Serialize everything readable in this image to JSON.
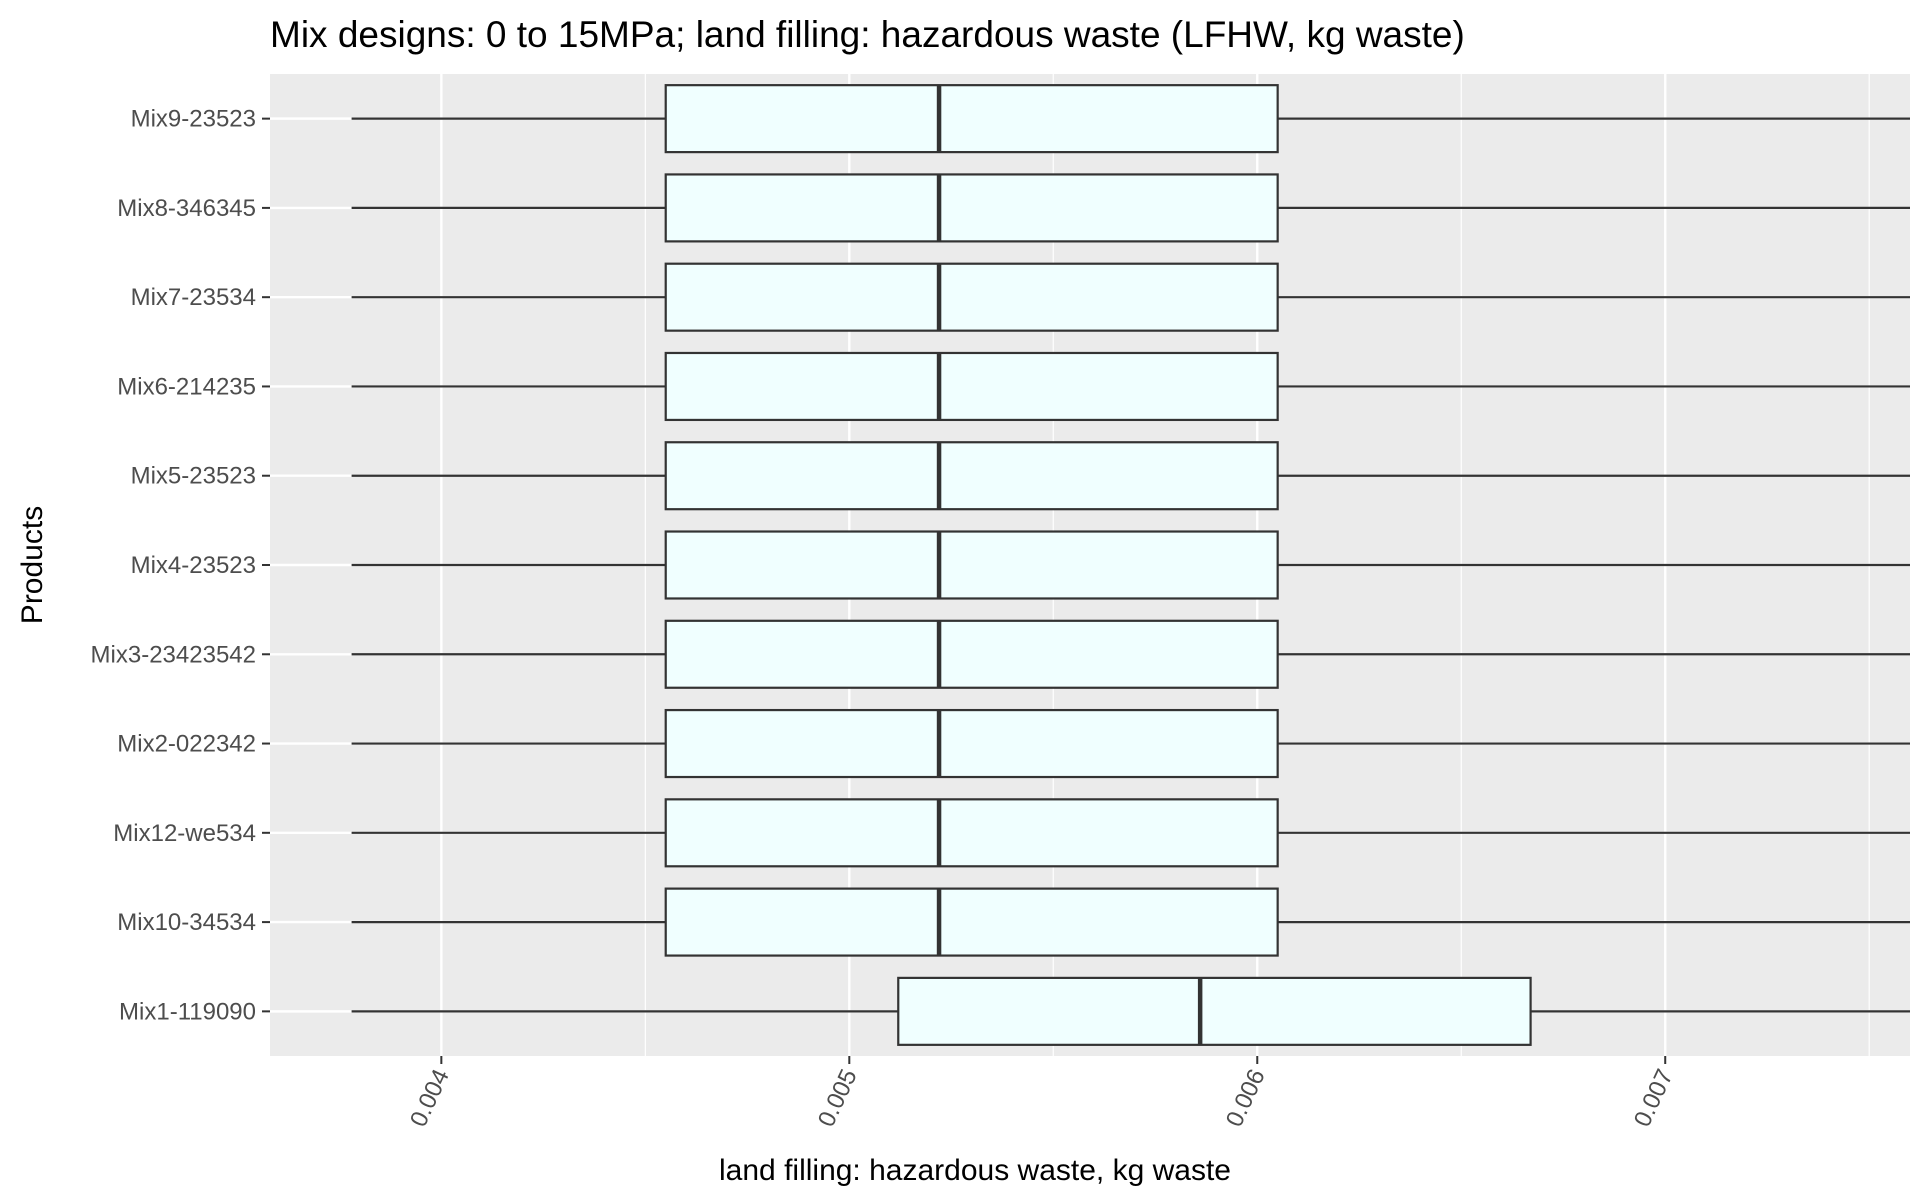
{
  "chart_data": {
    "type": "boxplot",
    "orientation": "horizontal",
    "title": "Mix designs: 0 to 15MPa; land filling: hazardous waste (LFHW, kg waste)",
    "xlabel": "land filling: hazardous waste, kg waste",
    "ylabel": "Products",
    "xlim": [
      0.00358,
      0.0076
    ],
    "x_ticks": [
      0.004,
      0.005,
      0.006,
      0.007
    ],
    "x_tick_labels": [
      "0.004",
      "0.005",
      "0.006",
      "0.007"
    ],
    "grid": true,
    "categories": [
      "Mix9-23523",
      "Mix8-346345",
      "Mix7-23534",
      "Mix6-214235",
      "Mix5-23523",
      "Mix4-23523",
      "Mix3-23423542",
      "Mix2-022342",
      "Mix12-we534",
      "Mix10-34534",
      "Mix1-119090"
    ],
    "boxes": [
      {
        "min": 0.00378,
        "q1": 0.00455,
        "median": 0.00522,
        "q3": 0.00605,
        "max": 0.0076
      },
      {
        "min": 0.00378,
        "q1": 0.00455,
        "median": 0.00522,
        "q3": 0.00605,
        "max": 0.0076
      },
      {
        "min": 0.00378,
        "q1": 0.00455,
        "median": 0.00522,
        "q3": 0.00605,
        "max": 0.0076
      },
      {
        "min": 0.00378,
        "q1": 0.00455,
        "median": 0.00522,
        "q3": 0.00605,
        "max": 0.0076
      },
      {
        "min": 0.00378,
        "q1": 0.00455,
        "median": 0.00522,
        "q3": 0.00605,
        "max": 0.0076
      },
      {
        "min": 0.00378,
        "q1": 0.00455,
        "median": 0.00522,
        "q3": 0.00605,
        "max": 0.0076
      },
      {
        "min": 0.00378,
        "q1": 0.00455,
        "median": 0.00522,
        "q3": 0.00605,
        "max": 0.0076
      },
      {
        "min": 0.00378,
        "q1": 0.00455,
        "median": 0.00522,
        "q3": 0.00605,
        "max": 0.0076
      },
      {
        "min": 0.00378,
        "q1": 0.00455,
        "median": 0.00522,
        "q3": 0.00605,
        "max": 0.0076
      },
      {
        "min": 0.00378,
        "q1": 0.00455,
        "median": 0.00522,
        "q3": 0.00605,
        "max": 0.0076
      },
      {
        "min": 0.00378,
        "q1": 0.00512,
        "median": 0.00586,
        "q3": 0.00667,
        "max": 0.0076
      }
    ],
    "colors": {
      "panel": "#ebebeb",
      "grid": "#ffffff",
      "box_fill": "#f0ffff",
      "box_stroke": "#333333"
    }
  }
}
